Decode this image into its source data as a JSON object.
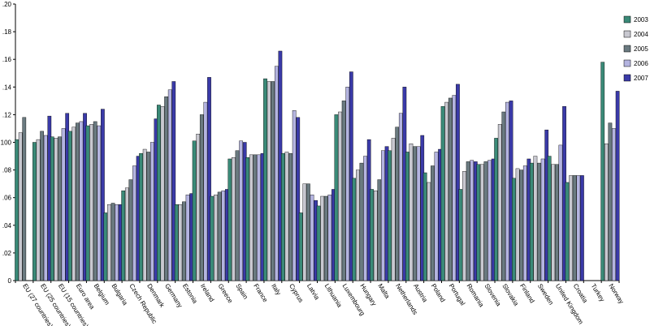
{
  "chart_data": {
    "type": "bar",
    "title_fragment": "",
    "xlabel": "",
    "ylabel": "",
    "ylim": [
      0,
      0.2
    ],
    "yticks": [
      {
        "value": 0,
        "label": "0"
      },
      {
        "value": 0.02,
        "label": ".02"
      },
      {
        "value": 0.04,
        "label": ".04"
      },
      {
        "value": 0.06,
        "label": ".06"
      },
      {
        "value": 0.08,
        "label": ".08"
      },
      {
        "value": 0.1,
        "label": ".100"
      },
      {
        "value": 0.12,
        "label": ".12"
      },
      {
        "value": 0.14,
        "label": ".14"
      },
      {
        "value": 0.16,
        "label": ".16"
      },
      {
        "value": 0.18,
        "label": ".18"
      },
      {
        "value": 0.2,
        "label": ".20"
      }
    ],
    "grid": false,
    "legend_position": "right",
    "categories": [
      "EU (27 countries)",
      "EU (25 countries)",
      "EU (15 countries)",
      "Euro area",
      "Belgium",
      "Bulgaria",
      "Czech Republic",
      "Denmark",
      "Germany",
      "Estonia",
      "Ireland",
      "Greece",
      "Spain",
      "France",
      "Italy",
      "Cyprus",
      "Latvia",
      "Lithuania",
      "Luxembourg",
      "Hungary",
      "Malta",
      "Netherlands",
      "Austria",
      "Poland",
      "Portugal",
      "Romania",
      "Slovenia",
      "Slovakia",
      "Finland",
      "Sweden",
      "United Kingdom",
      "Croatia",
      "Turkey",
      "Norway"
    ],
    "series": [
      {
        "name": "2003",
        "color": "#3a8a78",
        "values": [
          null,
          null,
          null,
          null,
          null,
          null,
          null,
          null,
          null,
          null,
          null,
          null,
          null,
          null,
          null,
          null,
          null,
          null,
          null,
          null,
          null,
          null,
          null,
          null,
          null,
          null,
          null,
          null,
          null,
          null,
          null,
          null,
          null,
          null
        ]
      },
      {
        "name": "2004",
        "color": "#c8c8d0",
        "values": [
          null,
          null,
          null,
          null,
          null,
          null,
          null,
          null,
          null,
          null,
          null,
          null,
          null,
          null,
          null,
          null,
          null,
          null,
          null,
          null,
          null,
          null,
          null,
          null,
          null,
          null,
          null,
          null,
          null,
          null,
          null,
          null,
          null,
          null
        ]
      },
      {
        "name": "2005",
        "color": "#6a7a80",
        "values": [
          null,
          null,
          null,
          null,
          null,
          null,
          null,
          null,
          null,
          null,
          null,
          null,
          null,
          null,
          null,
          null,
          null,
          null,
          null,
          null,
          null,
          null,
          null,
          null,
          null,
          null,
          null,
          null,
          null,
          null,
          null,
          null,
          null,
          null
        ]
      },
      {
        "name": "2006",
        "color": "#b4b4e0",
        "values": [
          null,
          null,
          null,
          null,
          null,
          null,
          null,
          null,
          null,
          null,
          null,
          null,
          null,
          null,
          null,
          null,
          null,
          null,
          null,
          null,
          null,
          null,
          null,
          null,
          null,
          null,
          null,
          null,
          null,
          null,
          null,
          null,
          null,
          null
        ]
      },
      {
        "name": "2007",
        "color": "#3a3aa8",
        "values": [
          null,
          null,
          null,
          null,
          null,
          null,
          null,
          null,
          null,
          null,
          null,
          null,
          null,
          null,
          null,
          null,
          null,
          null,
          null,
          null,
          null,
          null,
          null,
          null,
          null,
          null,
          null,
          null,
          null,
          null,
          null,
          null,
          null,
          null
        ]
      }
    ]
  }
}
